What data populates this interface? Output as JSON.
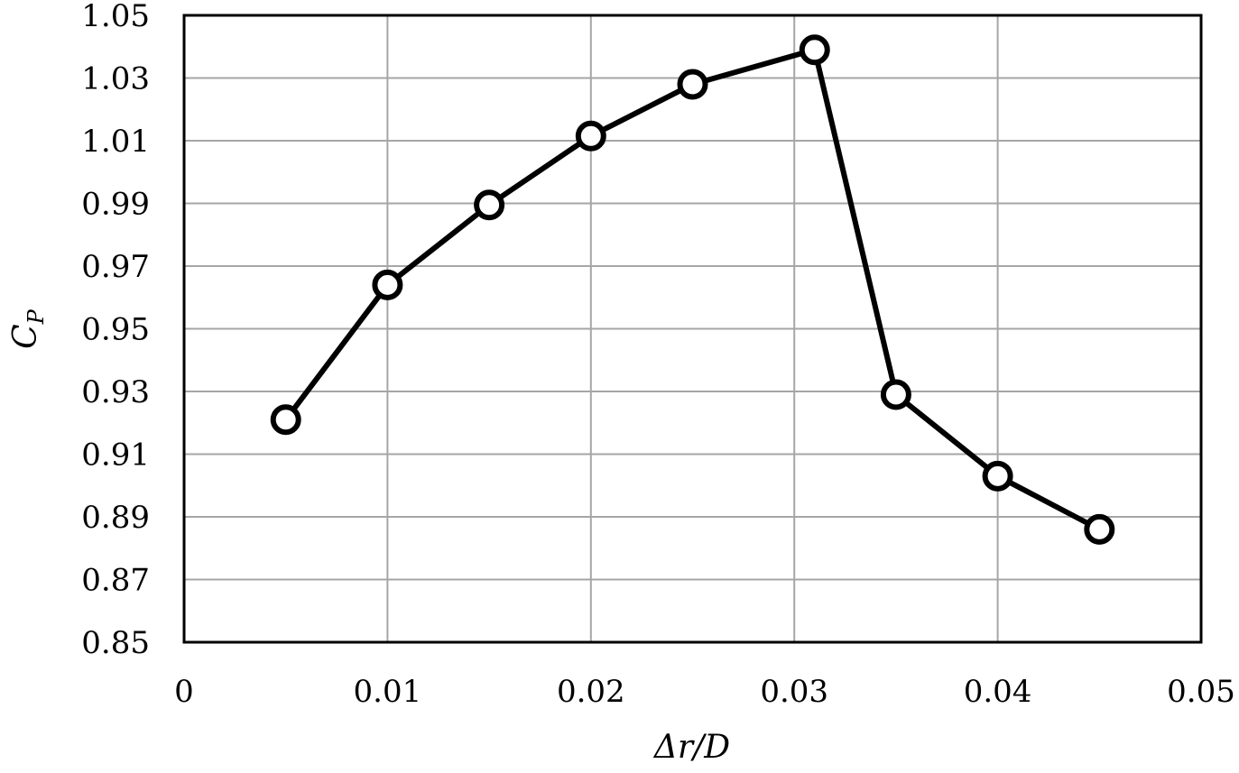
{
  "chart_data": {
    "type": "line",
    "title": "",
    "xlabel": "Δr/D",
    "ylabel": "C",
    "ylabel_subscript": "P",
    "xlim": [
      0,
      0.05
    ],
    "ylim": [
      0.85,
      1.05
    ],
    "x_ticks": [
      0,
      0.01,
      0.02,
      0.03,
      0.04,
      0.05
    ],
    "x_tick_labels": [
      "0",
      "0.01",
      "0.02",
      "0.03",
      "0.04",
      "0.05"
    ],
    "y_ticks": [
      0.85,
      0.87,
      0.89,
      0.91,
      0.93,
      0.95,
      0.97,
      0.99,
      1.01,
      1.03,
      1.05
    ],
    "y_tick_labels": [
      "0.85",
      "0.87",
      "0.89",
      "0.91",
      "0.93",
      "0.95",
      "0.97",
      "0.99",
      "1.01",
      "1.03",
      "1.05"
    ],
    "grid": true,
    "legend": "none",
    "series": [
      {
        "x": [
          0.005,
          0.01,
          0.015,
          0.02,
          0.025,
          0.031,
          0.035,
          0.04,
          0.045
        ],
        "y": [
          0.921,
          0.964,
          0.9895,
          1.0115,
          1.028,
          1.039,
          0.929,
          0.903,
          0.886
        ],
        "marker": "open-circle",
        "color": "#000000"
      }
    ]
  }
}
